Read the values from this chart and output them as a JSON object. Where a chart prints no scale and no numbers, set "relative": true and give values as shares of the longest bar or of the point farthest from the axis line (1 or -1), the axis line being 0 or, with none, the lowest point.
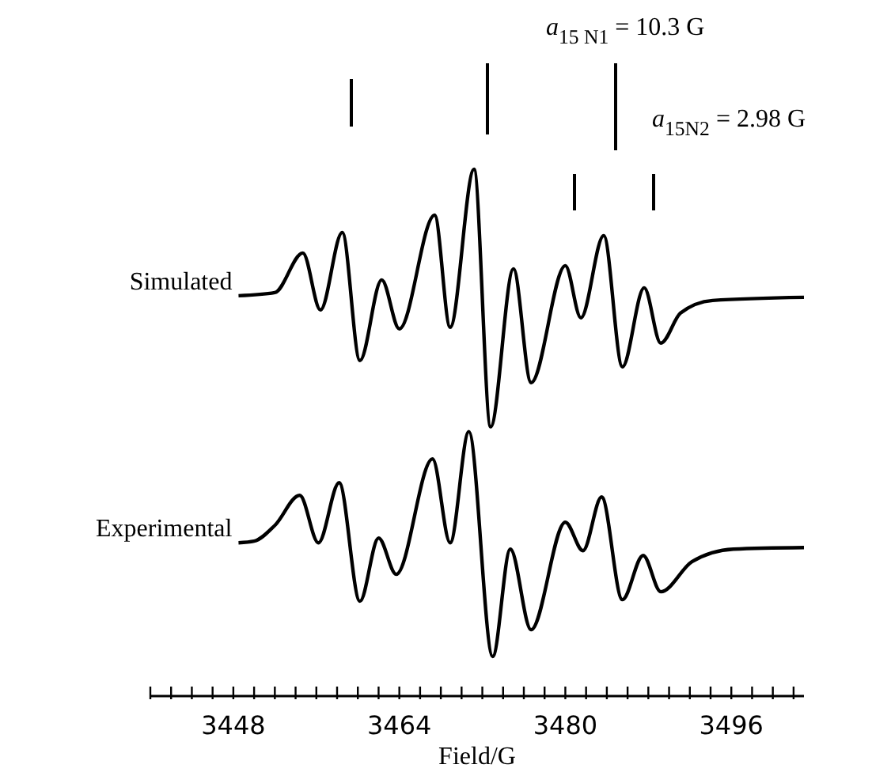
{
  "chart_data": {
    "type": "line",
    "relative": true,
    "xlabel": "Field/G",
    "xlim": [
      3440,
      3503
    ],
    "xticks": [
      {
        "value": 3440,
        "label": null
      },
      {
        "value": 3442,
        "label": null
      },
      {
        "value": 3444,
        "label": null
      },
      {
        "value": 3446,
        "label": null
      },
      3448,
      {
        "value": 3450,
        "label": null
      },
      {
        "value": 3452,
        "label": null
      },
      {
        "value": 3454,
        "label": null
      },
      {
        "value": 3456,
        "label": null
      },
      {
        "value": 3458,
        "label": null
      },
      {
        "value": 3460,
        "label": null
      },
      {
        "value": 3462,
        "label": null
      },
      3464,
      {
        "value": 3466,
        "label": null
      },
      {
        "value": 3468,
        "label": null
      },
      {
        "value": 3470,
        "label": null
      },
      {
        "value": 3472,
        "label": null
      },
      {
        "value": 3474,
        "label": null
      },
      {
        "value": 3476,
        "label": null
      },
      {
        "value": 3478,
        "label": null
      },
      3480,
      {
        "value": 3482,
        "label": null
      },
      {
        "value": 3484,
        "label": null
      },
      {
        "value": 3486,
        "label": null
      },
      {
        "value": 3488,
        "label": null
      },
      {
        "value": 3490,
        "label": null
      },
      {
        "value": 3492,
        "label": null
      },
      {
        "value": 3494,
        "label": null
      },
      3496,
      {
        "value": 3498,
        "label": null
      },
      {
        "value": 3500,
        "label": null
      },
      {
        "value": 3502,
        "label": null
      }
    ],
    "tick_labels": "x",
    "legend": false,
    "series": [
      {
        "name": "Simulated",
        "color": "#000000",
        "x": [
          3448.5,
          3452.0,
          3454.7,
          3456.4,
          3458.5,
          3460.2,
          3462.3,
          3464.0,
          3467.4,
          3468.9,
          3471.2,
          3472.8,
          3475.0,
          3476.7,
          3480.0,
          3481.5,
          3483.7,
          3485.5,
          3487.6,
          3489.2,
          3491.1,
          3494.2,
          3503.0
        ],
        "values": [
          0.76,
          0.766,
          0.841,
          0.733,
          0.88,
          0.637,
          0.79,
          0.697,
          0.913,
          0.7,
          1,
          0.511,
          0.811,
          0.595,
          0.817,
          0.718,
          0.874,
          0.625,
          0.775,
          0.67,
          0.727,
          0.751,
          0.757
        ]
      },
      {
        "name": "Experimental",
        "color": "#000000",
        "x": [
          3448.5,
          3450.0,
          3452.0,
          3454.4,
          3456.2,
          3458.2,
          3460.2,
          3462.0,
          3463.7,
          3467.2,
          3468.9,
          3470.7,
          3473.0,
          3474.7,
          3476.7,
          3480.0,
          3481.7,
          3483.5,
          3485.5,
          3487.5,
          3489.2,
          3492.2,
          3496.2,
          3503.0
        ],
        "values": [
          0.291,
          0.294,
          0.324,
          0.381,
          0.291,
          0.405,
          0.18,
          0.3,
          0.231,
          0.45,
          0.291,
          0.502,
          0.075,
          0.279,
          0.126,
          0.33,
          0.276,
          0.378,
          0.183,
          0.267,
          0.198,
          0.255,
          0.279,
          0.282
        ]
      }
    ],
    "annotations": [
      "a$_{15 N1}$ = 10.3 G",
      "a$_{15N2}$ = 2.98 G"
    ]
  }
}
